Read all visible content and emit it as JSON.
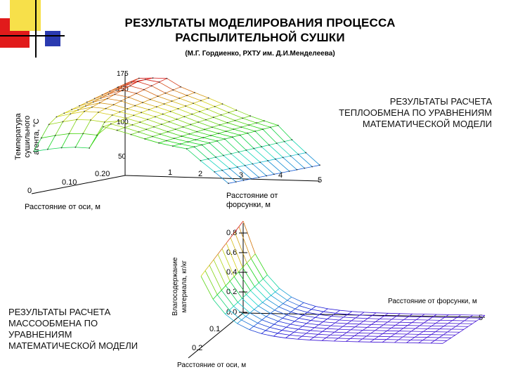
{
  "title_line1": "РЕЗУЛЬТАТЫ   МОДЕЛИРОВАНИЯ ПРОЦЕССА",
  "title_line2": "РАСПЫЛИТЕЛЬНОЙ СУШКИ",
  "subtitle": "(М.Г. Гордиенко, РХТУ им. Д.И.Менделеева)",
  "colors": {
    "red_square": "#e11b1b",
    "yellow_square": "#f7e04a",
    "blue_square": "#2a3ab0",
    "rule": "#000000"
  },
  "plot1": {
    "note": [
      "РЕЗУЛЬТАТЫ РАСЧЕТА",
      "ТЕПЛООБМЕНА ПО УРАВНЕНИЯМ",
      "МАТЕМАТИЧЕСКОЙ МОДЕЛИ"
    ],
    "zlabel": [
      "Температура",
      "сушильного",
      "агента, °C"
    ],
    "ylabel": "Расстояние от оси, м",
    "xlabel": [
      "Расстояние от",
      "форсунки, м"
    ],
    "z_ticks": [
      "175",
      "150",
      "100",
      "50"
    ],
    "y_ticks": [
      "0",
      "0.10",
      "0.20"
    ],
    "x_ticks": [
      "1",
      "2",
      "3",
      "4",
      "5"
    ]
  },
  "plot2": {
    "note": [
      "РЕЗУЛЬТАТЫ РАСЧЕТА",
      "МАССООБМЕНА ПО",
      "УРАВНЕНИЯМ",
      "МАТЕМАТИЧЕСКОЙ МОДЕЛИ"
    ],
    "zlabel": [
      "Влагосодержание",
      "материала, кг/кг"
    ],
    "ylabel": "Расстояние от оси, м",
    "xlabel": "Расстояние от форсунки, м",
    "z_ticks": [
      "0.8",
      "0.6",
      "0.4",
      "0.2",
      "0.0"
    ],
    "y_ticks": [
      "0.1",
      "0.2"
    ],
    "x_ticks": [
      "5"
    ]
  }
}
